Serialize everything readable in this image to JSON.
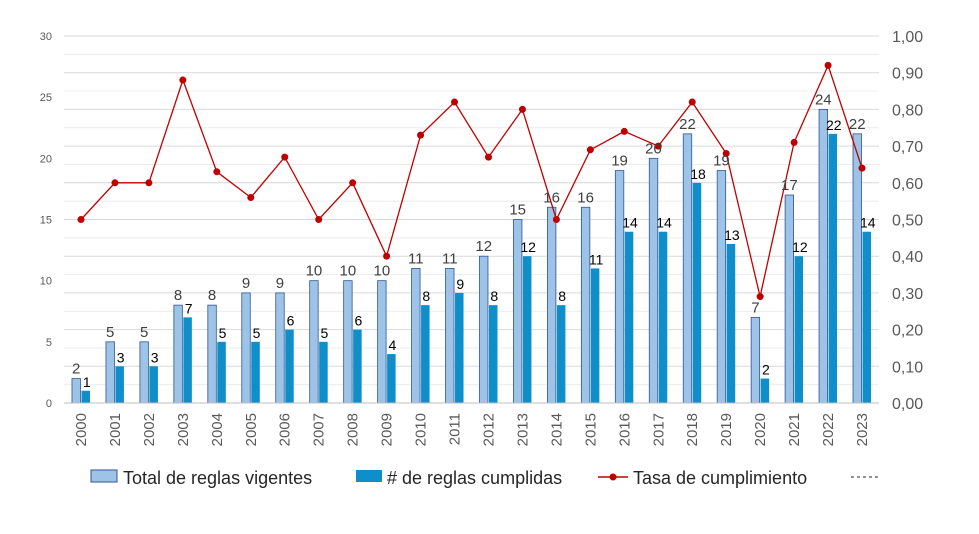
{
  "chart_data": {
    "type": "bar",
    "categories": [
      "2000",
      "2001",
      "2002",
      "2003",
      "2004",
      "2005",
      "2006",
      "2007",
      "2008",
      "2009",
      "2010",
      "2011",
      "2012",
      "2013",
      "2014",
      "2015",
      "2016",
      "2017",
      "2018",
      "2019",
      "2020",
      "2021",
      "2022",
      "2023"
    ],
    "series": [
      {
        "name": "Total de reglas vigentes",
        "type": "bar",
        "axis": "left",
        "color": "#9DC3E6",
        "values": [
          2,
          5,
          5,
          8,
          8,
          9,
          9,
          10,
          10,
          10,
          11,
          11,
          12,
          15,
          16,
          16,
          19,
          20,
          22,
          19,
          7,
          17,
          24,
          22
        ]
      },
      {
        "name": "# de reglas cumplidas",
        "type": "bar",
        "axis": "left",
        "color": "#0E8FC9",
        "values": [
          1,
          3,
          3,
          7,
          5,
          5,
          6,
          5,
          6,
          4,
          8,
          9,
          8,
          12,
          8,
          11,
          14,
          14,
          18,
          13,
          2,
          12,
          22,
          14
        ]
      },
      {
        "name": "Tasa de cumplimiento",
        "type": "line",
        "axis": "right",
        "color": "#C00000",
        "values": [
          0.5,
          0.6,
          0.6,
          0.88,
          0.63,
          0.56,
          0.67,
          0.5,
          0.6,
          0.4,
          0.73,
          0.82,
          0.67,
          0.8,
          0.5,
          0.69,
          0.74,
          0.7,
          0.82,
          0.68,
          0.29,
          0.71,
          0.92,
          0.64
        ]
      }
    ],
    "extra_legend_entry": "",
    "y_left": {
      "ylim": [
        0,
        30
      ],
      "ticks": [
        "0",
        "5",
        "10",
        "15",
        "20",
        "25",
        "30"
      ]
    },
    "y_right": {
      "ylim": [
        0,
        1
      ],
      "ticks": [
        "0,00",
        "0,10",
        "0,20",
        "0,30",
        "0,40",
        "0,50",
        "0,60",
        "0,70",
        "0,80",
        "0,90",
        "1,00"
      ]
    },
    "grid": true,
    "legend_position": "bottom"
  }
}
